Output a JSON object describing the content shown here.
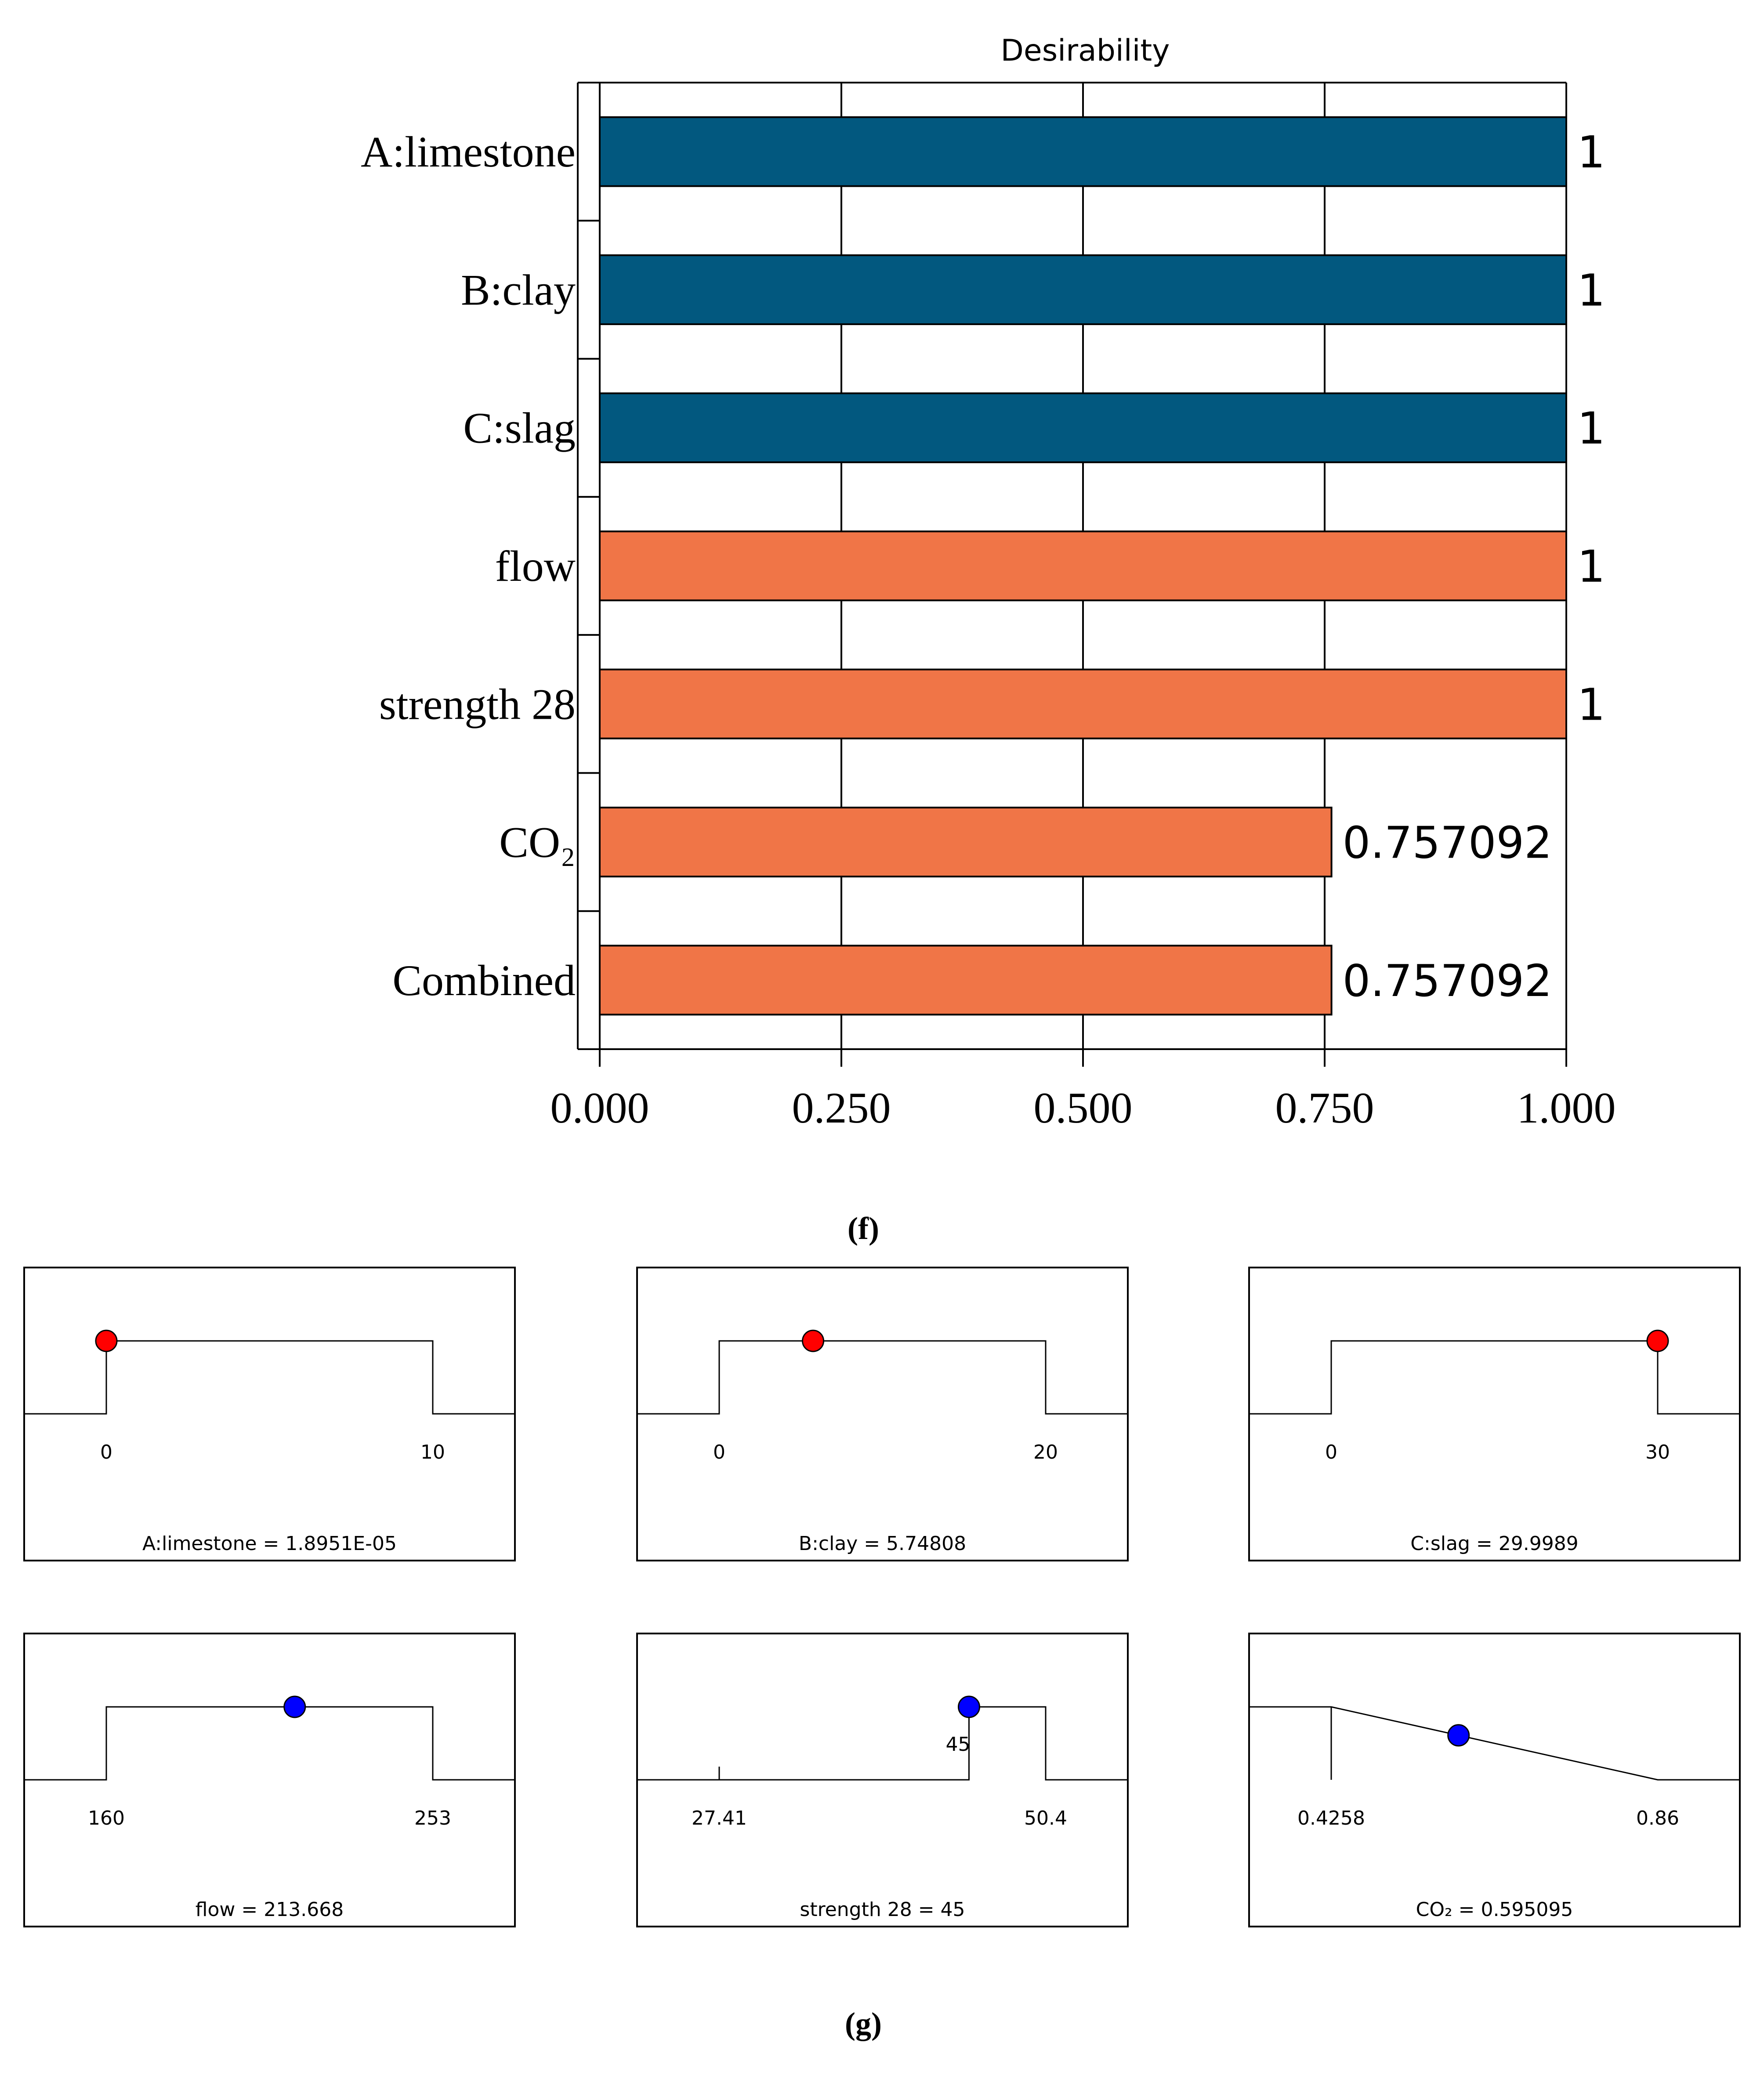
{
  "figure_labels": {
    "f": "(f)",
    "g": "(g)"
  },
  "chart_data": [
    {
      "type": "bar",
      "orientation": "horizontal",
      "title": "Desirability",
      "xlim": [
        0,
        1
      ],
      "x_ticks": [
        "0.000",
        "0.250",
        "0.500",
        "0.750",
        "1.000"
      ],
      "grid": true,
      "categories": [
        "A:limestone",
        "B:clay",
        "C:slag",
        "flow",
        "strength 28",
        "CO₂",
        "Combined"
      ],
      "values": [
        1,
        1,
        1,
        1,
        1,
        0.757092,
        0.757092
      ],
      "value_labels": [
        "1",
        "1",
        "1",
        "1",
        "1",
        "0.757092",
        "0.757092"
      ],
      "bar_colors": [
        "#02587f",
        "#02587f",
        "#02587f",
        "#f07547",
        "#f07547",
        "#f07547",
        "#f07547"
      ]
    },
    {
      "type": "ramp-panels",
      "panels": [
        {
          "shape": "box",
          "low": "0",
          "high": "10",
          "low_value": 0,
          "high_value": 10,
          "value": 1.8951e-05,
          "marker_color": "#ff0000",
          "caption": "A:limestone = 1.8951E-05"
        },
        {
          "shape": "box",
          "low": "0",
          "high": "20",
          "low_value": 0,
          "high_value": 20,
          "value": 5.74808,
          "marker_color": "#ff0000",
          "caption": "B:clay = 5.74808"
        },
        {
          "shape": "box",
          "low": "0",
          "high": "30",
          "low_value": 0,
          "high_value": 30,
          "value": 29.9989,
          "marker_color": "#ff0000",
          "caption": "C:slag = 29.9989"
        },
        {
          "shape": "box",
          "low": "160",
          "high": "253",
          "low_value": 160,
          "high_value": 253,
          "value": 213.668,
          "marker_color": "#0000ff",
          "caption": "flow = 213.668"
        },
        {
          "shape": "target",
          "low": "27.41",
          "high": "50.4",
          "target": "45",
          "low_value": 27.41,
          "high_value": 50.4,
          "target_value": 45,
          "value": 45,
          "marker_color": "#0000ff",
          "caption": "strength 28 = 45"
        },
        {
          "shape": "minimize",
          "low": "0.4258",
          "high": "0.86",
          "low_value": 0.4258,
          "high_value": 0.86,
          "value": 0.595095,
          "marker_color": "#0000ff",
          "caption": "CO₂ = 0.595095"
        }
      ]
    }
  ]
}
